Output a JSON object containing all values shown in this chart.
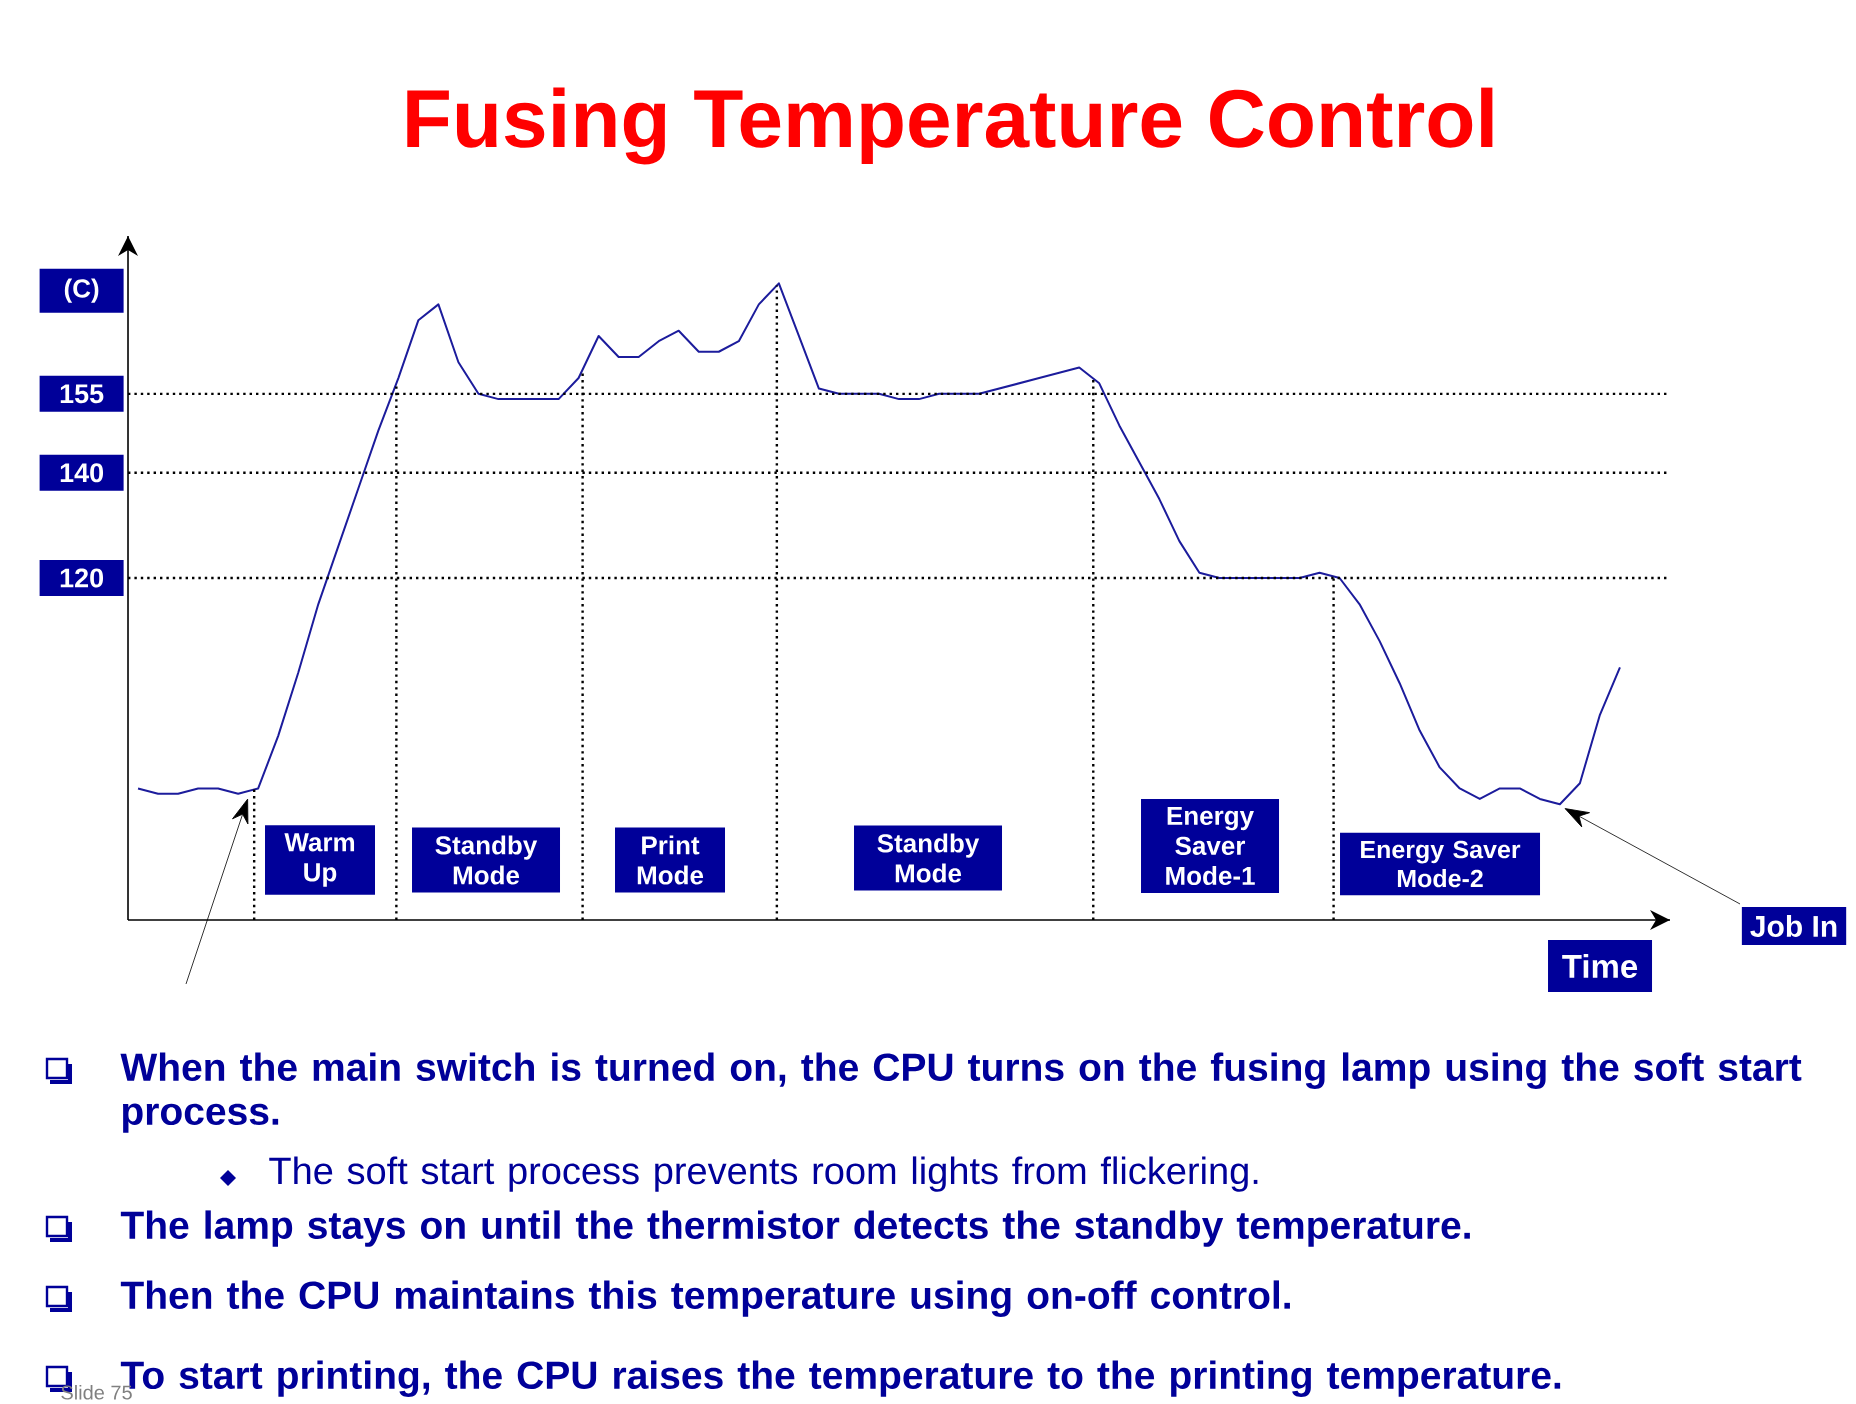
{
  "chart_data": {
    "type": "line",
    "title": "Fusing Temperature Control",
    "ylabel": "(C)",
    "categories": [
      null,
      null,
      null,
      null,
      null,
      null,
      null,
      null,
      null,
      null,
      null,
      null,
      null,
      null,
      null,
      null,
      null,
      null,
      null,
      null,
      null,
      null,
      null,
      null,
      null,
      null,
      null,
      null,
      null,
      null,
      null,
      null,
      null,
      null,
      null,
      null,
      null,
      null,
      null,
      null,
      null,
      null,
      null,
      null,
      null,
      null,
      null,
      null,
      null,
      null,
      null,
      null,
      null,
      null,
      null,
      null,
      null,
      null,
      null,
      null,
      null,
      null,
      null,
      null,
      null,
      null,
      null,
      null,
      null,
      null,
      null,
      null,
      null,
      null,
      null
    ],
    "series": [
      {
        "color": "#1c1c9c",
        "values": [
          80,
          79,
          79,
          80,
          80,
          79,
          80,
          90,
          102,
          115,
          126,
          137,
          148,
          158,
          169,
          172,
          161,
          155,
          154,
          154,
          154,
          154,
          158,
          166,
          162,
          162,
          165,
          167,
          163,
          163,
          165,
          172,
          176,
          166,
          156,
          155,
          155,
          155,
          154,
          154,
          155,
          155,
          155,
          156,
          157,
          158,
          159,
          160,
          157,
          149,
          142,
          135,
          127,
          121,
          120,
          120,
          120,
          120,
          120,
          121,
          120,
          115,
          108,
          100,
          91,
          84,
          80,
          78,
          80,
          80,
          78,
          77,
          81,
          94,
          103
        ]
      }
    ],
    "ylim": [
      55,
      185
    ],
    "yticks": [
      120,
      140,
      155
    ],
    "tick_labels": "y",
    "ref_lines": [
      {
        "axis": "y",
        "value": 155,
        "line_style": "dotted",
        "color": "#000000"
      },
      {
        "axis": "y",
        "value": 140,
        "line_style": "dotted",
        "color": "#000000"
      },
      {
        "axis": "y",
        "value": 120,
        "line_style": "dotted",
        "color": "#000000"
      }
    ],
    "annotations": [
      "Warm Up",
      "Standby Mode",
      "Print Mode",
      "Standby Mode",
      "Energy Saver Mode-1",
      "Energy Saver Mode-2",
      "Job In",
      "Time",
      "When the main switch is turned on, the CPU turns on the fusing lamp using the soft start process.",
      "The soft start process prevents room lights from flickering.",
      "The lamp stays on until the thermistor detects the standby temperature.",
      "Then the CPU maintains this temperature using on-off control.",
      "To start printing, the CPU raises the temperature to the printing temperature.",
      "Slide 75"
    ]
  }
}
